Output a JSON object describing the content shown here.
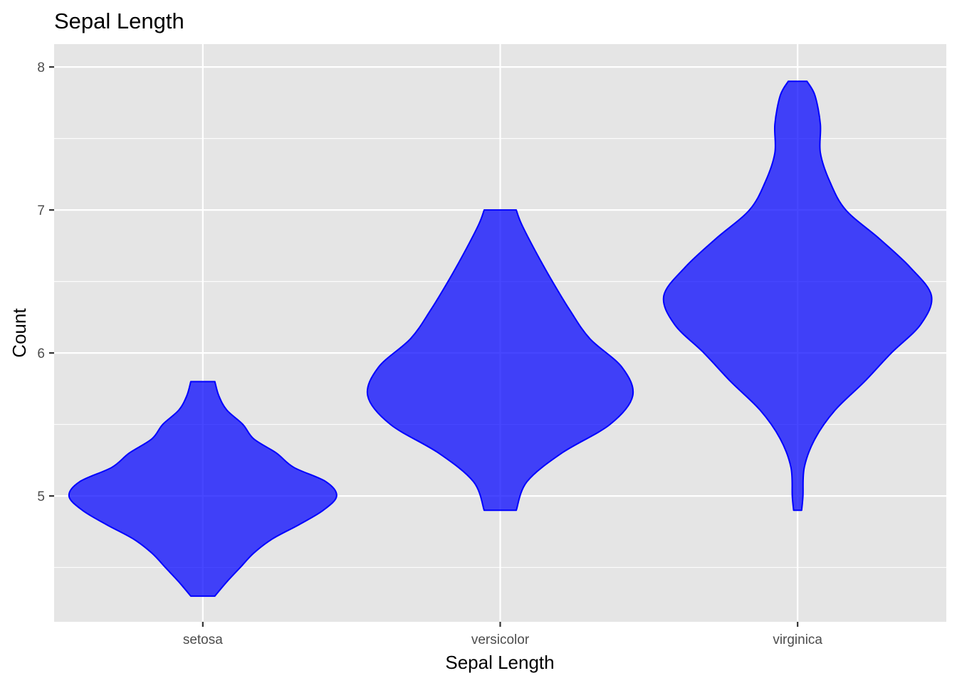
{
  "chart_data": {
    "type": "violin",
    "title": "Sepal Length",
    "xlabel": "Sepal Length",
    "ylabel": "Count",
    "categories": [
      "setosa",
      "versicolor",
      "virginica"
    ],
    "ylim": [
      4.12,
      8.16
    ],
    "yticks": [
      5,
      6,
      7,
      8
    ],
    "ytick_labels": [
      "5",
      "6",
      "7",
      "8"
    ],
    "grid": true,
    "legend": "none",
    "colors": {
      "panel": "#E5E5E5",
      "grid": "#FFFFFF",
      "fill": "#0000FF",
      "stroke": "#0000FF",
      "fill_opacity": 0.72
    },
    "series": [
      {
        "category": "setosa",
        "min": 4.3,
        "max": 5.8,
        "profile": [
          [
            4.3,
            0.09
          ],
          [
            4.4,
            0.18
          ],
          [
            4.5,
            0.28
          ],
          [
            4.6,
            0.38
          ],
          [
            4.7,
            0.52
          ],
          [
            4.8,
            0.72
          ],
          [
            4.9,
            0.9
          ],
          [
            5.0,
            1.0
          ],
          [
            5.1,
            0.92
          ],
          [
            5.2,
            0.68
          ],
          [
            5.3,
            0.55
          ],
          [
            5.4,
            0.38
          ],
          [
            5.5,
            0.3
          ],
          [
            5.6,
            0.18
          ],
          [
            5.7,
            0.12
          ],
          [
            5.8,
            0.09
          ]
        ]
      },
      {
        "category": "versicolor",
        "min": 4.9,
        "max": 7.0,
        "profile": [
          [
            4.9,
            0.12
          ],
          [
            5.1,
            0.2
          ],
          [
            5.3,
            0.46
          ],
          [
            5.5,
            0.82
          ],
          [
            5.7,
            0.99
          ],
          [
            5.9,
            0.91
          ],
          [
            6.1,
            0.67
          ],
          [
            6.3,
            0.52
          ],
          [
            6.5,
            0.39
          ],
          [
            6.7,
            0.27
          ],
          [
            6.9,
            0.16
          ],
          [
            7.0,
            0.12
          ]
        ]
      },
      {
        "category": "virginica",
        "min": 4.9,
        "max": 7.9,
        "profile": [
          [
            4.9,
            0.03
          ],
          [
            5.0,
            0.04
          ],
          [
            5.2,
            0.05
          ],
          [
            5.4,
            0.13
          ],
          [
            5.6,
            0.28
          ],
          [
            5.8,
            0.5
          ],
          [
            6.0,
            0.7
          ],
          [
            6.2,
            0.92
          ],
          [
            6.4,
            1.0
          ],
          [
            6.6,
            0.84
          ],
          [
            6.8,
            0.61
          ],
          [
            7.0,
            0.36
          ],
          [
            7.2,
            0.24
          ],
          [
            7.4,
            0.17
          ],
          [
            7.6,
            0.17
          ],
          [
            7.8,
            0.13
          ],
          [
            7.9,
            0.07
          ]
        ]
      }
    ]
  }
}
